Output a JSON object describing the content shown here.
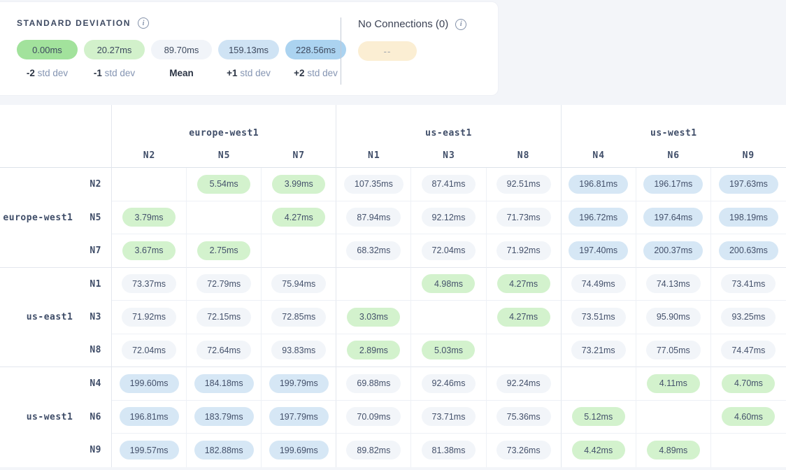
{
  "legend_panel": {
    "title": "STANDARD DEVIATION",
    "items": [
      {
        "value": "0.00ms",
        "color": "#a2e29c",
        "label_bold": "-2",
        "label_rest": "std dev"
      },
      {
        "value": "20.27ms",
        "color": "#d2f1cb",
        "label_bold": "-1",
        "label_rest": "std dev"
      },
      {
        "value": "89.70ms",
        "color": "#f1f4f9",
        "label_bold": "Mean",
        "label_rest": ""
      },
      {
        "value": "159.13ms",
        "color": "#cfe3f4",
        "label_bold": "+1",
        "label_rest": "std dev"
      },
      {
        "value": "228.56ms",
        "color": "#abd3f0",
        "label_bold": "+2",
        "label_rest": "std dev"
      }
    ]
  },
  "no_connections": {
    "title": "No Connections (0)",
    "pill_text": "--",
    "pill_color": "#fbeed3"
  },
  "matrix": {
    "cell_colors": {
      "green": "#d3f2cd",
      "gray": "#f2f5f9",
      "blue": "#d6e7f5"
    },
    "col_groups": [
      {
        "region": "europe-west1",
        "nodes": [
          "N2",
          "N5",
          "N7"
        ]
      },
      {
        "region": "us-east1",
        "nodes": [
          "N1",
          "N3",
          "N8"
        ]
      },
      {
        "region": "us-west1",
        "nodes": [
          "N4",
          "N6",
          "N9"
        ]
      }
    ],
    "row_groups": [
      {
        "region": "europe-west1",
        "rows": [
          {
            "node": "N2",
            "cells": [
              null,
              {
                "v": "5.54ms",
                "c": "green"
              },
              {
                "v": "3.99ms",
                "c": "green"
              },
              {
                "v": "107.35ms",
                "c": "gray"
              },
              {
                "v": "87.41ms",
                "c": "gray"
              },
              {
                "v": "92.51ms",
                "c": "gray"
              },
              {
                "v": "196.81ms",
                "c": "blue"
              },
              {
                "v": "196.17ms",
                "c": "blue"
              },
              {
                "v": "197.63ms",
                "c": "blue"
              }
            ]
          },
          {
            "node": "N5",
            "cells": [
              {
                "v": "3.79ms",
                "c": "green"
              },
              null,
              {
                "v": "4.27ms",
                "c": "green"
              },
              {
                "v": "87.94ms",
                "c": "gray"
              },
              {
                "v": "92.12ms",
                "c": "gray"
              },
              {
                "v": "71.73ms",
                "c": "gray"
              },
              {
                "v": "196.72ms",
                "c": "blue"
              },
              {
                "v": "197.64ms",
                "c": "blue"
              },
              {
                "v": "198.19ms",
                "c": "blue"
              }
            ]
          },
          {
            "node": "N7",
            "cells": [
              {
                "v": "3.67ms",
                "c": "green"
              },
              {
                "v": "2.75ms",
                "c": "green"
              },
              null,
              {
                "v": "68.32ms",
                "c": "gray"
              },
              {
                "v": "72.04ms",
                "c": "gray"
              },
              {
                "v": "71.92ms",
                "c": "gray"
              },
              {
                "v": "197.40ms",
                "c": "blue"
              },
              {
                "v": "200.37ms",
                "c": "blue"
              },
              {
                "v": "200.63ms",
                "c": "blue"
              }
            ]
          }
        ]
      },
      {
        "region": "us-east1",
        "rows": [
          {
            "node": "N1",
            "cells": [
              {
                "v": "73.37ms",
                "c": "gray"
              },
              {
                "v": "72.79ms",
                "c": "gray"
              },
              {
                "v": "75.94ms",
                "c": "gray"
              },
              null,
              {
                "v": "4.98ms",
                "c": "green"
              },
              {
                "v": "4.27ms",
                "c": "green"
              },
              {
                "v": "74.49ms",
                "c": "gray"
              },
              {
                "v": "74.13ms",
                "c": "gray"
              },
              {
                "v": "73.41ms",
                "c": "gray"
              }
            ]
          },
          {
            "node": "N3",
            "cells": [
              {
                "v": "71.92ms",
                "c": "gray"
              },
              {
                "v": "72.15ms",
                "c": "gray"
              },
              {
                "v": "72.85ms",
                "c": "gray"
              },
              {
                "v": "3.03ms",
                "c": "green"
              },
              null,
              {
                "v": "4.27ms",
                "c": "green"
              },
              {
                "v": "73.51ms",
                "c": "gray"
              },
              {
                "v": "95.90ms",
                "c": "gray"
              },
              {
                "v": "93.25ms",
                "c": "gray"
              }
            ]
          },
          {
            "node": "N8",
            "cells": [
              {
                "v": "72.04ms",
                "c": "gray"
              },
              {
                "v": "72.64ms",
                "c": "gray"
              },
              {
                "v": "93.83ms",
                "c": "gray"
              },
              {
                "v": "2.89ms",
                "c": "green"
              },
              {
                "v": "5.03ms",
                "c": "green"
              },
              null,
              {
                "v": "73.21ms",
                "c": "gray"
              },
              {
                "v": "77.05ms",
                "c": "gray"
              },
              {
                "v": "74.47ms",
                "c": "gray"
              }
            ]
          }
        ]
      },
      {
        "region": "us-west1",
        "rows": [
          {
            "node": "N4",
            "cells": [
              {
                "v": "199.60ms",
                "c": "blue"
              },
              {
                "v": "184.18ms",
                "c": "blue"
              },
              {
                "v": "199.79ms",
                "c": "blue"
              },
              {
                "v": "69.88ms",
                "c": "gray"
              },
              {
                "v": "92.46ms",
                "c": "gray"
              },
              {
                "v": "92.24ms",
                "c": "gray"
              },
              null,
              {
                "v": "4.11ms",
                "c": "green"
              },
              {
                "v": "4.70ms",
                "c": "green"
              }
            ]
          },
          {
            "node": "N6",
            "cells": [
              {
                "v": "196.81ms",
                "c": "blue"
              },
              {
                "v": "183.79ms",
                "c": "blue"
              },
              {
                "v": "197.79ms",
                "c": "blue"
              },
              {
                "v": "70.09ms",
                "c": "gray"
              },
              {
                "v": "73.71ms",
                "c": "gray"
              },
              {
                "v": "75.36ms",
                "c": "gray"
              },
              {
                "v": "5.12ms",
                "c": "green"
              },
              null,
              {
                "v": "4.60ms",
                "c": "green"
              }
            ]
          },
          {
            "node": "N9",
            "cells": [
              {
                "v": "199.57ms",
                "c": "blue"
              },
              {
                "v": "182.88ms",
                "c": "blue"
              },
              {
                "v": "199.69ms",
                "c": "blue"
              },
              {
                "v": "89.82ms",
                "c": "gray"
              },
              {
                "v": "81.38ms",
                "c": "gray"
              },
              {
                "v": "73.26ms",
                "c": "gray"
              },
              {
                "v": "4.42ms",
                "c": "green"
              },
              {
                "v": "4.89ms",
                "c": "green"
              },
              null
            ]
          }
        ]
      }
    ]
  }
}
